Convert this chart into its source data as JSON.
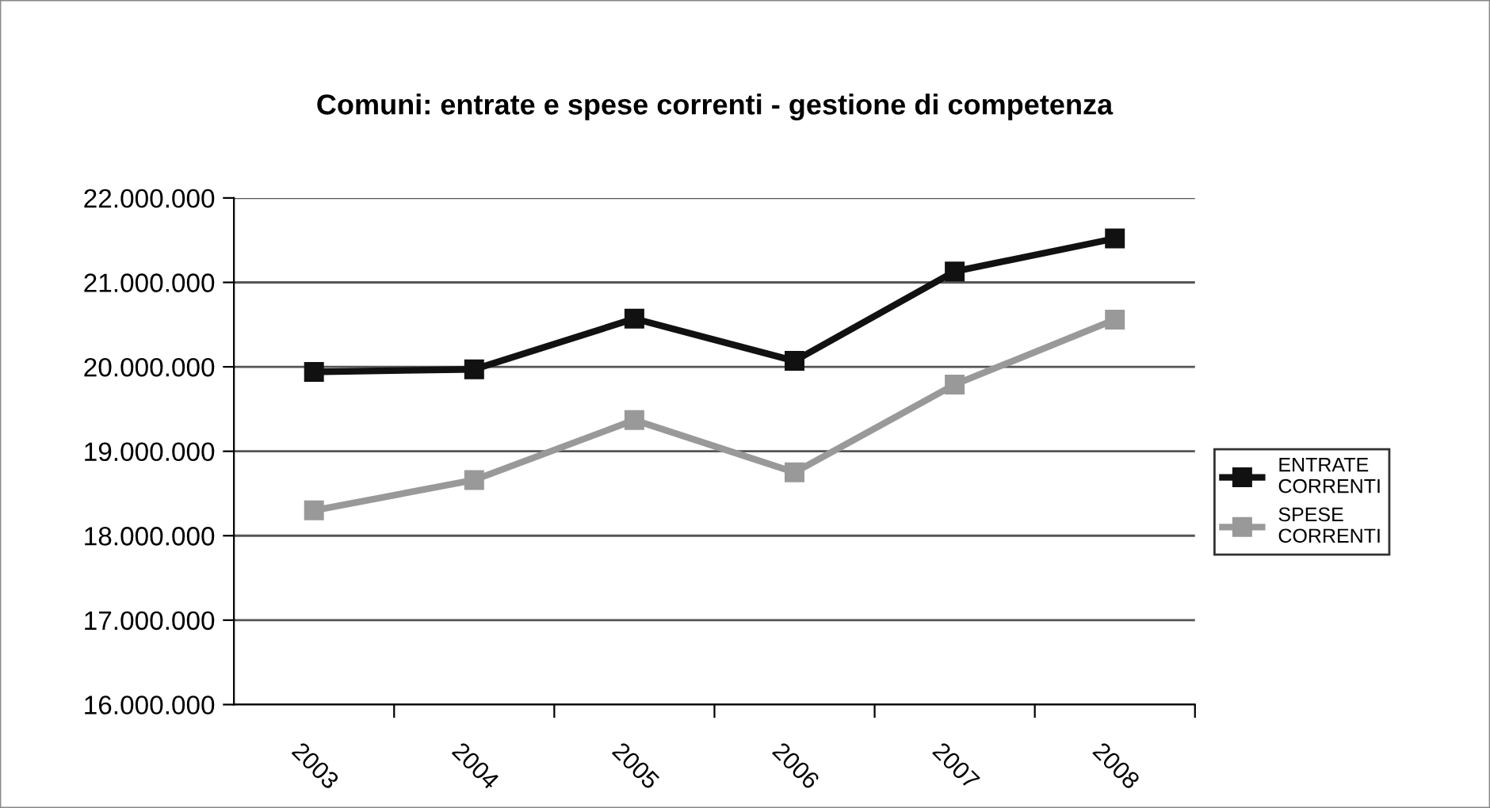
{
  "chart_data": {
    "type": "line",
    "title": "Comuni: entrate e spese correnti - gestione di competenza",
    "categories": [
      "2003",
      "2004",
      "2005",
      "2006",
      "2007",
      "2008"
    ],
    "series": [
      {
        "name": "ENTRATE\nCORRENTI",
        "color": "#111111",
        "values": [
          19940000,
          19970000,
          20570000,
          20070000,
          21130000,
          21520000
        ]
      },
      {
        "name": "SPESE\nCORRENTI",
        "color": "#999999",
        "values": [
          18300000,
          18660000,
          19370000,
          18750000,
          19790000,
          20560000
        ]
      }
    ],
    "ylim": [
      16000000,
      22000000
    ],
    "yticks": [
      {
        "value": 16000000,
        "label": "16.000.000"
      },
      {
        "value": 17000000,
        "label": "17.000.000"
      },
      {
        "value": 18000000,
        "label": "18.000.000"
      },
      {
        "value": 19000000,
        "label": "19.000.000"
      },
      {
        "value": 20000000,
        "label": "20.000.000"
      },
      {
        "value": 21000000,
        "label": "21.000.000"
      },
      {
        "value": 22000000,
        "label": "22.000.000"
      }
    ],
    "grid": "y",
    "legend": "right",
    "marker": "square",
    "line_style": "solid"
  }
}
